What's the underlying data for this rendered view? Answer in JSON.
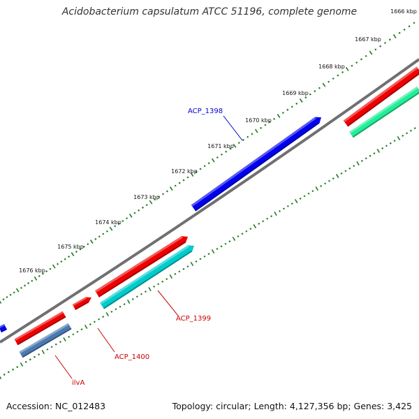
{
  "title": "Acidobacterium capsulatum ATCC 51196, complete genome",
  "footer": {
    "accession": "Accession: NC_012483",
    "summary": "Topology: circular; Length: 4,127,356 bp; Genes: 3,425"
  },
  "scale_labels": [
    "1666 kbp",
    "1667 kbp",
    "1668 kbp",
    "1669 kbp",
    "1670 kbp",
    "1671 kbp",
    "1672 kbp",
    "1673 kbp",
    "1674 kbp",
    "1675 kbp",
    "1676 kbp"
  ],
  "gene_labels": [
    "ACP_1398",
    "ACP_1399",
    "ACP_1400",
    "ilvA"
  ],
  "colors": {
    "backbone": "#707070",
    "tick": "#1f7a1f",
    "gene_blue": "#0000ee",
    "gene_red": "#ee0000",
    "gene_cyan": "#00cccc",
    "gene_steel": "#4a7ab0",
    "gene_green": "#22ee99",
    "label_blue": "#0000cc",
    "label_red": "#cc0000"
  }
}
